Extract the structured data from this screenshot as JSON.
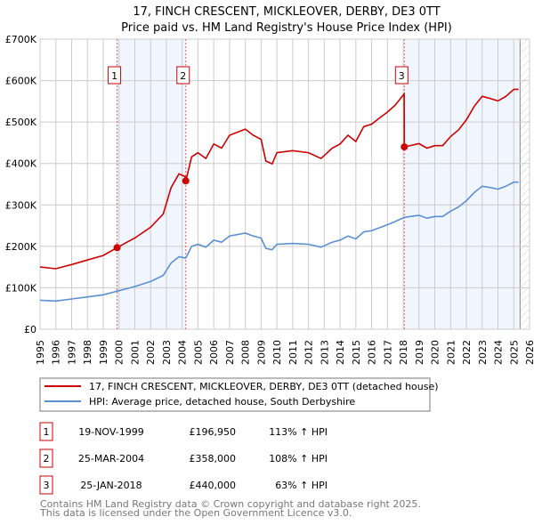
{
  "chart_data": {
    "type": "line",
    "title": "17, FINCH CRESCENT, MICKLEOVER, DERBY, DE3 0TT",
    "subtitle": "Price paid vs. HM Land Registry's House Price Index (HPI)",
    "xlim": [
      1995,
      2026
    ],
    "ylim": [
      0,
      700000
    ],
    "x_ticks": [
      "1995",
      "1996",
      "1997",
      "1998",
      "1999",
      "2000",
      "2001",
      "2002",
      "2003",
      "2004",
      "2005",
      "2006",
      "2007",
      "2008",
      "2009",
      "2010",
      "2011",
      "2012",
      "2013",
      "2014",
      "2015",
      "2016",
      "2017",
      "2018",
      "2019",
      "2020",
      "2021",
      "2022",
      "2023",
      "2024",
      "2025",
      "2026"
    ],
    "y_ticks": [
      {
        "value": 0,
        "label": "£0"
      },
      {
        "value": 100000,
        "label": "£100K"
      },
      {
        "value": 200000,
        "label": "£200K"
      },
      {
        "value": 300000,
        "label": "£300K"
      },
      {
        "value": 400000,
        "label": "£400K"
      },
      {
        "value": 500000,
        "label": "£500K"
      },
      {
        "value": 600000,
        "label": "£600K"
      },
      {
        "value": 700000,
        "label": "£700K"
      }
    ],
    "grid": true,
    "data_end_year": 2025.4,
    "series": [
      {
        "name": "17, FINCH CRESCENT, MICKLEOVER, DERBY, DE3 0TT (detached house)",
        "color": "#cc0000",
        "x": [
          1995,
          1996,
          1997,
          1998,
          1999,
          1999.88,
          2000.5,
          2001,
          2002,
          2002.8,
          2003.3,
          2003.8,
          2004.2,
          2004.23,
          2004.6,
          2005,
          2005.5,
          2006,
          2006.5,
          2007,
          2008,
          2008.5,
          2009,
          2009.3,
          2009.7,
          2010,
          2011,
          2012,
          2012.8,
          2013.5,
          2014,
          2014.5,
          2015,
          2015.5,
          2016,
          2016.5,
          2017,
          2017.5,
          2018.06,
          2018.07,
          2019,
          2019.5,
          2020,
          2020.5,
          2021,
          2021.5,
          2022,
          2022.5,
          2023,
          2023.5,
          2024,
          2024.5,
          2025,
          2025.3
        ],
        "y": [
          150000,
          146000,
          156000,
          167000,
          178000,
          196950,
          210000,
          220000,
          246000,
          278000,
          342000,
          375000,
          368000,
          358000,
          416000,
          426000,
          412000,
          447000,
          437000,
          468000,
          483000,
          468000,
          458000,
          406000,
          399000,
          426000,
          431000,
          426000,
          412000,
          437000,
          447000,
          468000,
          453000,
          489000,
          495000,
          510000,
          524000,
          541000,
          568000,
          440000,
          448000,
          437000,
          443000,
          443000,
          465000,
          481000,
          505000,
          538000,
          562000,
          557000,
          551000,
          562000,
          579000,
          579000
        ]
      },
      {
        "name": "HPI: Average price, detached house, South Derbyshire",
        "color": "#5b8fd4",
        "x": [
          1995,
          1996,
          1997,
          1998,
          1999,
          1999.88,
          2000.5,
          2001,
          2002,
          2002.8,
          2003.3,
          2003.8,
          2004.2,
          2004.23,
          2004.6,
          2005,
          2005.5,
          2006,
          2006.5,
          2007,
          2008,
          2008.5,
          2009,
          2009.3,
          2009.7,
          2010,
          2011,
          2012,
          2012.8,
          2013.5,
          2014,
          2014.5,
          2015,
          2015.5,
          2016,
          2016.5,
          2017,
          2017.5,
          2018.06,
          2018.07,
          2019,
          2019.5,
          2020,
          2020.5,
          2021,
          2021.5,
          2022,
          2022.5,
          2023,
          2023.5,
          2024,
          2024.5,
          2025,
          2025.3
        ],
        "y": [
          70000,
          68000,
          73000,
          78000,
          83000,
          92000,
          98000,
          103000,
          115000,
          130000,
          160000,
          175000,
          172000,
          172000,
          200000,
          205000,
          198000,
          215000,
          210000,
          225000,
          232000,
          225000,
          220000,
          195000,
          192000,
          205000,
          207000,
          205000,
          198000,
          210000,
          215000,
          225000,
          218000,
          235000,
          238000,
          245000,
          252000,
          260000,
          270000,
          270000,
          275000,
          268000,
          272000,
          272000,
          285000,
          295000,
          310000,
          330000,
          345000,
          342000,
          338000,
          345000,
          355000,
          355000
        ]
      }
    ],
    "sales": [
      {
        "id": "1",
        "year": 1999.88,
        "date": "19-NOV-1999",
        "price": 196950,
        "price_label": "£196,950",
        "hpi_change": "113% ↑ HPI"
      },
      {
        "id": "2",
        "year": 2004.23,
        "date": "25-MAR-2004",
        "price": 358000,
        "price_label": "£358,000",
        "hpi_change": "108% ↑ HPI"
      },
      {
        "id": "3",
        "year": 2018.07,
        "date": "25-JAN-2018",
        "price": 440000,
        "price_label": "£440,000",
        "hpi_change": "63% ↑ HPI"
      }
    ],
    "shaded_ranges": [
      [
        1999.88,
        2004.23
      ],
      [
        2018.07,
        2025.4
      ]
    ],
    "legend_position": "below"
  },
  "footer": {
    "line1": "Contains HM Land Registry data © Crown copyright and database right 2025.",
    "line2": "This data is licensed under the Open Government Licence v3.0."
  }
}
